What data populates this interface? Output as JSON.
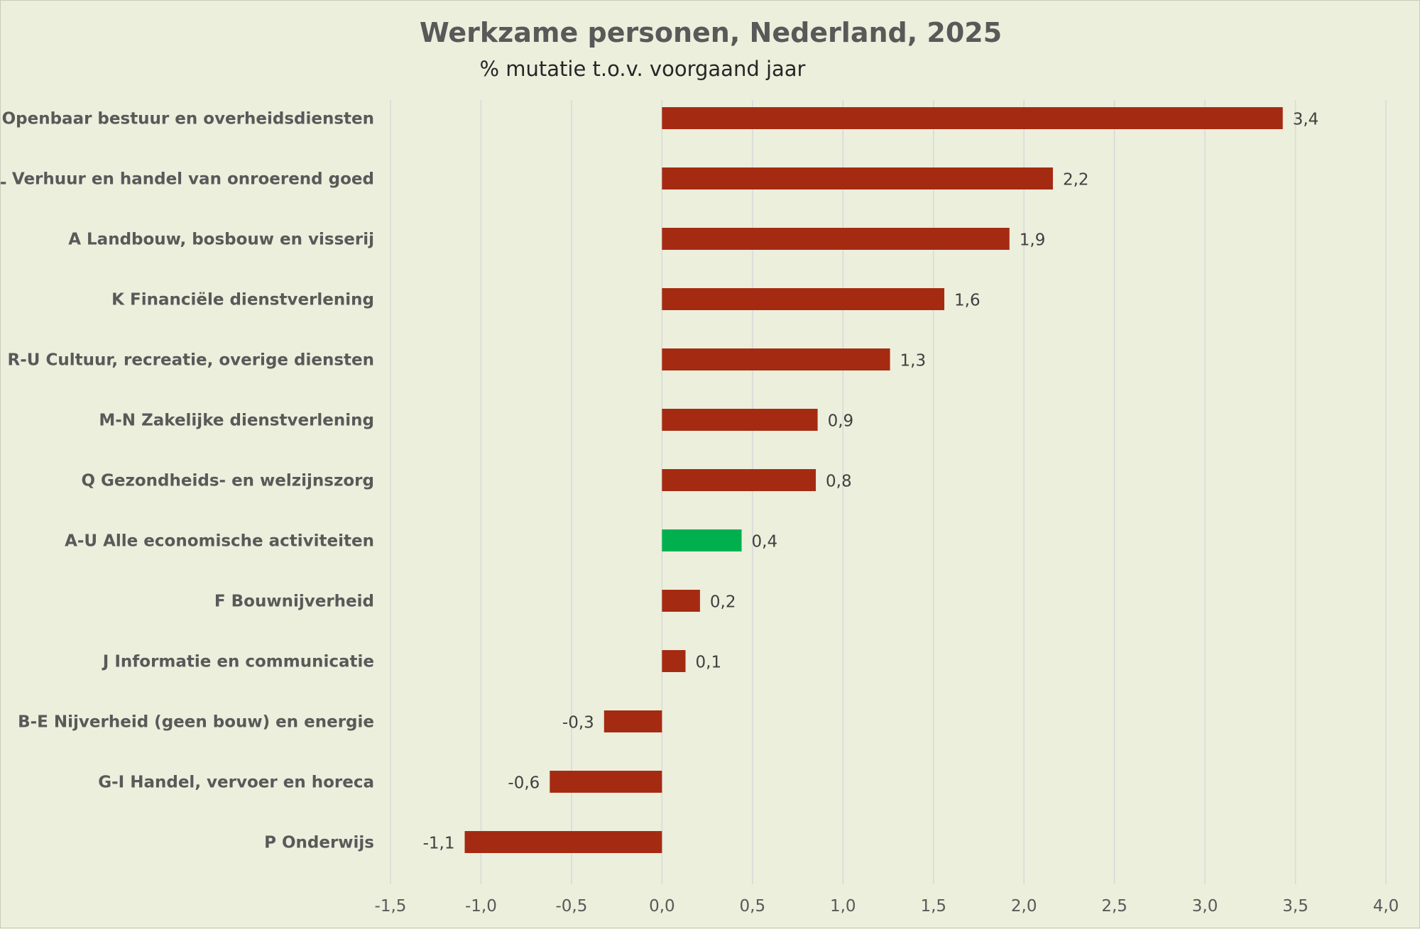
{
  "chart_data": {
    "type": "bar",
    "orientation": "horizontal",
    "title": "Werkzame personen, Nederland, 2025",
    "subtitle": "% mutatie t.o.v. voorgaand jaar",
    "categories": [
      "O Openbaar bestuur en overheidsdiensten",
      "L Verhuur en handel van onroerend goed",
      "A Landbouw, bosbouw en visserij",
      "K Financiële dienstverlening",
      "R-U Cultuur, recreatie, overige diensten",
      "M-N Zakelijke dienstverlening",
      "Q Gezondheids- en welzijnszorg",
      "A-U Alle economische activiteiten",
      "F Bouwnijverheid",
      "J Informatie en communicatie",
      "B-E Nijverheid (geen bouw) en energie",
      "G-I Handel, vervoer en horeca",
      "P Onderwijs"
    ],
    "values": [
      3.43,
      2.16,
      1.92,
      1.56,
      1.26,
      0.86,
      0.85,
      0.44,
      0.21,
      0.13,
      -0.32,
      -0.62,
      -1.09
    ],
    "data_labels": [
      "3,4",
      "2,2",
      "1,9",
      "1,6",
      "1,3",
      "0,9",
      "0,8",
      "0,4",
      "0,2",
      "0,1",
      "-0,3",
      "-0,6",
      "-1,1"
    ],
    "highlight_index": 7,
    "colors": {
      "bar": "#a52a12",
      "highlight": "#00b04f",
      "background": "#ebefdc"
    },
    "xlim": [
      -1.5,
      4.0
    ],
    "xticks": [
      -1.5,
      -1.0,
      -0.5,
      0.0,
      0.5,
      1.0,
      1.5,
      2.0,
      2.5,
      3.0,
      3.5,
      4.0
    ],
    "xtick_labels": [
      "-1,5",
      "-1,0",
      "-0,5",
      "0,0",
      "0,5",
      "1,0",
      "1,5",
      "2,0",
      "2,5",
      "3,0",
      "3,5",
      "4,0"
    ],
    "xlabel": "",
    "ylabel": "",
    "grid": true,
    "legend": "none"
  }
}
